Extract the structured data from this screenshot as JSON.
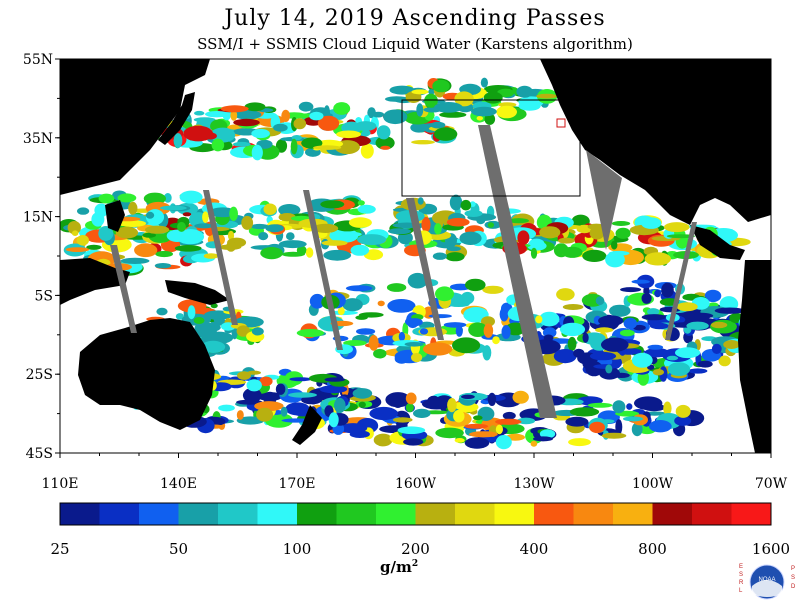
{
  "header": {
    "title": "July 14, 2019  Ascending Passes",
    "subtitle": "SSM/I + SSMIS Cloud Liquid Water (Karstens algorithm)"
  },
  "map": {
    "lat_labels": [
      "55N",
      "35N",
      "15N",
      "5S",
      "25S",
      "45S"
    ],
    "lon_labels": [
      "110E",
      "140E",
      "170E",
      "160W",
      "130W",
      "100W",
      "70W"
    ],
    "lat_range": [
      -45,
      55
    ],
    "lon_range_east": [
      110,
      290
    ],
    "colors": {
      "land": "#000000",
      "no_data": "#ffffff",
      "gap_between_passes": "#6e6e6e",
      "box_outline": "#000000",
      "marker": "#d01010"
    }
  },
  "colorbar": {
    "labels": [
      "25",
      "50",
      "100",
      "200",
      "400",
      "800",
      "1600"
    ],
    "unit_base": "g/m",
    "unit_exp": "2",
    "colors": [
      "#0a1a8c",
      "#0a2fc4",
      "#1060f0",
      "#18a0a8",
      "#20c8c8",
      "#30f8f8",
      "#10a010",
      "#20c820",
      "#30f030",
      "#b8b010",
      "#e0d810",
      "#f8f810",
      "#f85810",
      "#f88810",
      "#f8b010",
      "#a00808",
      "#d01010",
      "#f81818"
    ]
  },
  "logo": {
    "letters_left": "ESRL",
    "letters_right": "PSD",
    "text": "NOAA"
  }
}
